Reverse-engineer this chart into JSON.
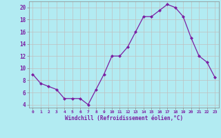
{
  "x": [
    0,
    1,
    2,
    3,
    4,
    5,
    6,
    7,
    8,
    9,
    10,
    11,
    12,
    13,
    14,
    15,
    16,
    17,
    18,
    19,
    20,
    21,
    22,
    23
  ],
  "y": [
    9.0,
    7.5,
    7.0,
    6.5,
    5.0,
    5.0,
    5.0,
    4.0,
    6.5,
    9.0,
    12.0,
    12.0,
    13.5,
    16.0,
    18.5,
    18.5,
    19.5,
    20.5,
    20.0,
    18.5,
    15.0,
    12.0,
    11.0,
    8.5
  ],
  "line_color": "#7b1fa2",
  "marker_color": "#7b1fa2",
  "bg_color": "#b2ebf2",
  "grid_color": "#c0c0c0",
  "xlabel": "Windchill (Refroidissement éolien,°C)",
  "xlabel_color": "#7b1fa2",
  "tick_color": "#7b1fa2",
  "xlim": [
    -0.5,
    23.5
  ],
  "ylim": [
    3.5,
    21.0
  ],
  "yticks": [
    4,
    6,
    8,
    10,
    12,
    14,
    16,
    18,
    20
  ],
  "xticks": [
    0,
    1,
    2,
    3,
    4,
    5,
    6,
    7,
    8,
    9,
    10,
    11,
    12,
    13,
    14,
    15,
    16,
    17,
    18,
    19,
    20,
    21,
    22,
    23
  ]
}
